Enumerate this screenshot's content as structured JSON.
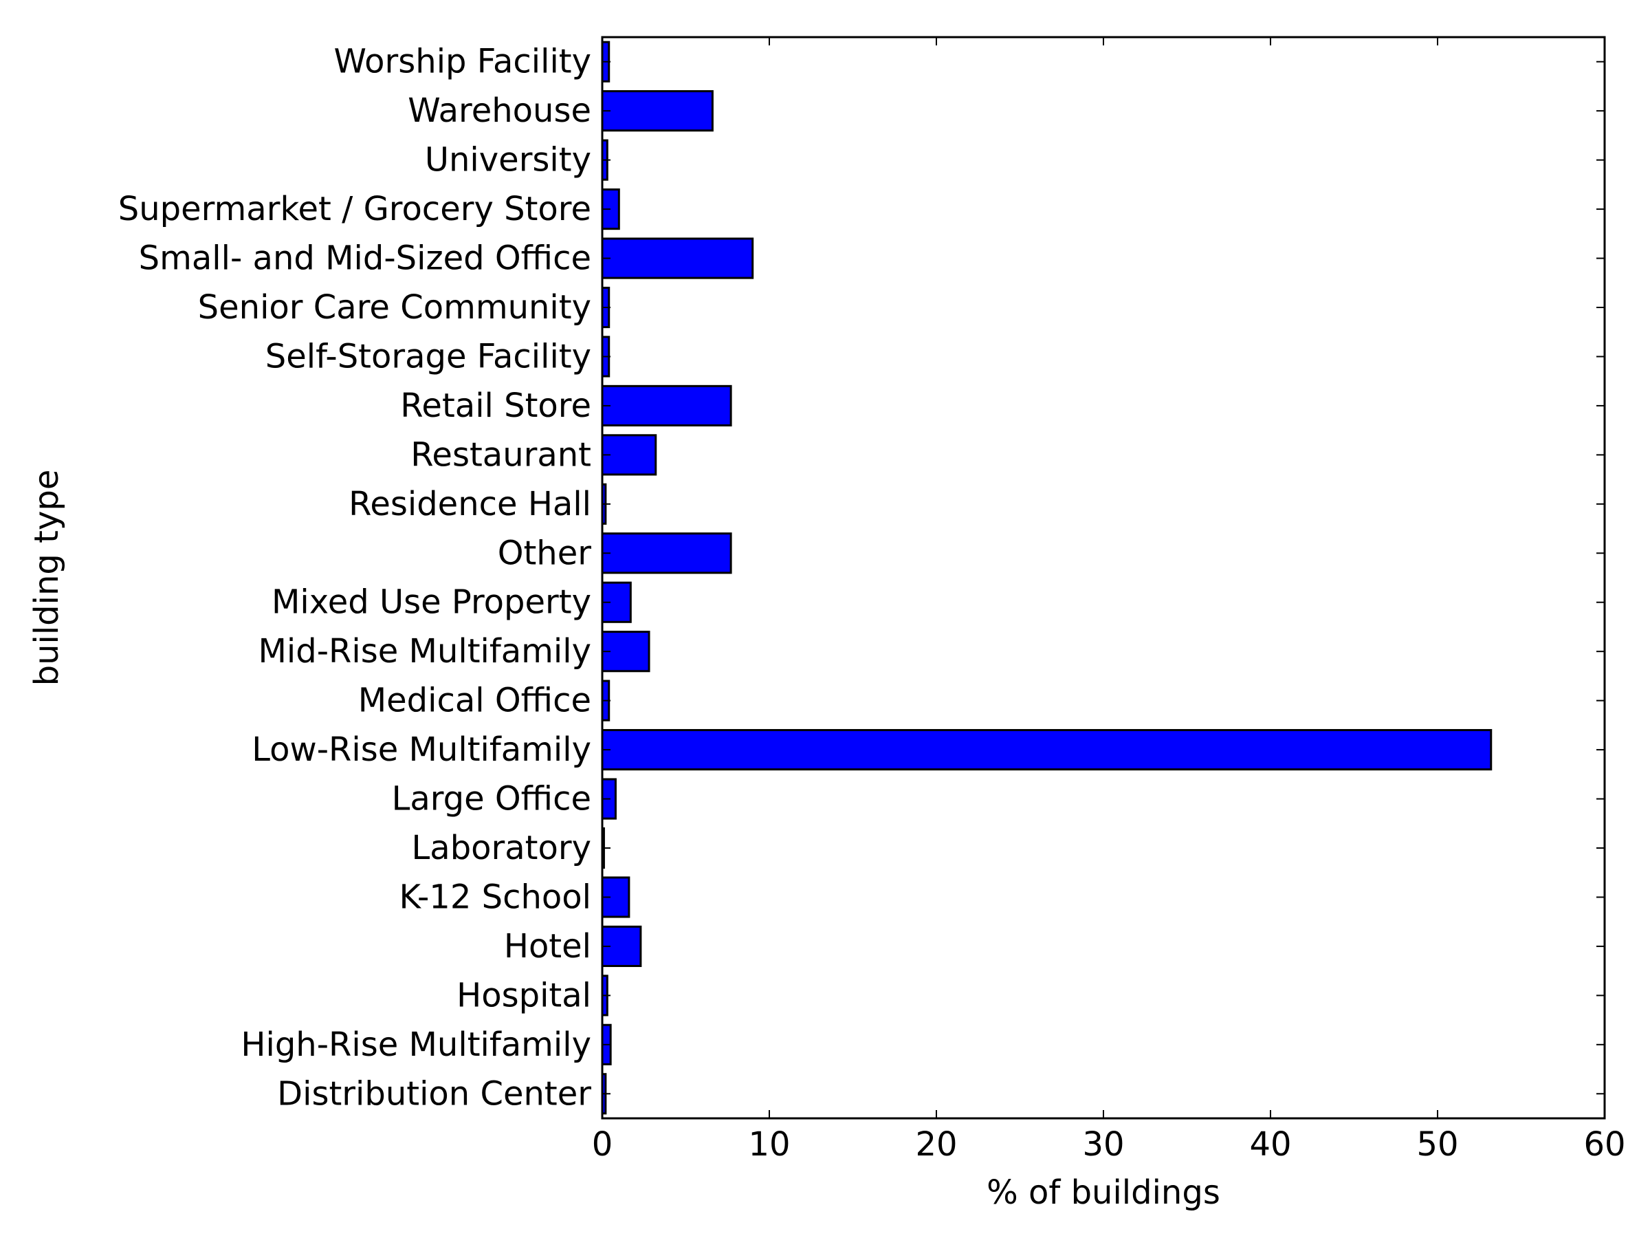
{
  "chart_data": {
    "type": "bar",
    "orientation": "horizontal",
    "title": "",
    "xlabel": "% of buildings",
    "ylabel": "building type",
    "xlim": [
      0,
      60
    ],
    "xticks": [
      0,
      10,
      20,
      30,
      40,
      50,
      60
    ],
    "grid": false,
    "legend": "none",
    "bar_color": "#0000ff",
    "edge_color": "#000000",
    "categories": [
      "Distribution Center",
      "High-Rise Multifamily",
      "Hospital",
      "Hotel",
      "K-12 School",
      "Laboratory",
      "Large Office",
      "Low-Rise Multifamily",
      "Medical Office",
      "Mid-Rise Multifamily",
      "Mixed Use Property",
      "Other",
      "Residence Hall",
      "Restaurant",
      "Retail Store",
      "Self-Storage Facility",
      "Senior Care Community",
      "Small- and Mid-Sized Office",
      "Supermarket / Grocery Store",
      "University",
      "Warehouse",
      "Worship Facility"
    ],
    "values": [
      0.2,
      0.5,
      0.3,
      2.3,
      1.6,
      0.1,
      0.8,
      53.2,
      0.4,
      2.8,
      1.7,
      7.7,
      0.2,
      3.2,
      7.7,
      0.4,
      0.4,
      9.0,
      1.0,
      0.3,
      6.6,
      0.4
    ]
  }
}
